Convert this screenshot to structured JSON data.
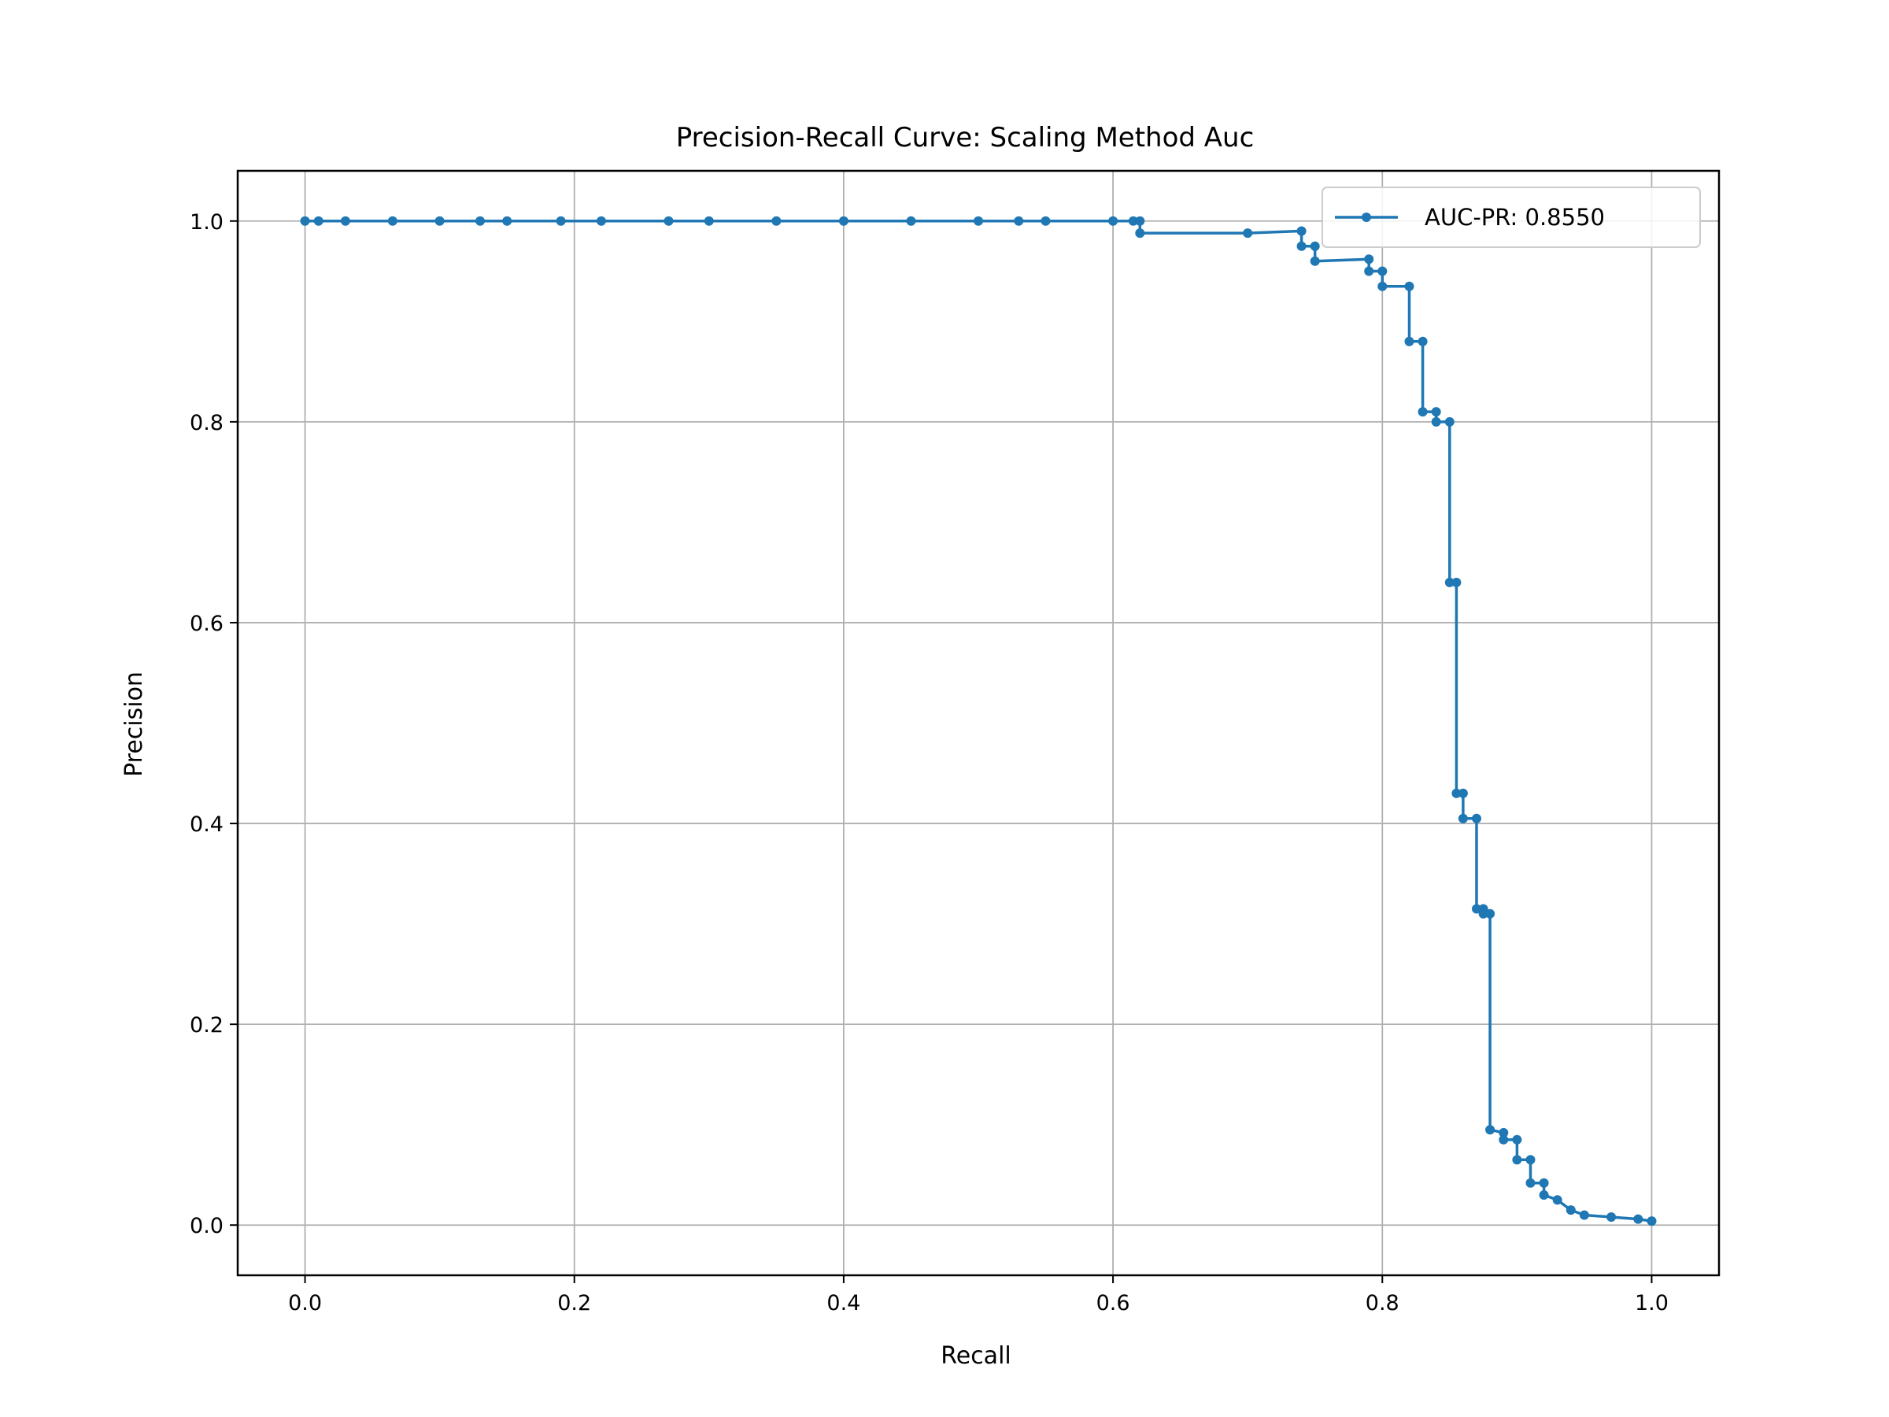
{
  "chart_data": {
    "type": "line",
    "title": "Precision-Recall Curve: Scaling Method Auc",
    "xlabel": "Recall",
    "ylabel": "Precision",
    "xlim": [
      -0.05,
      1.05
    ],
    "ylim": [
      -0.05,
      1.05
    ],
    "xticks": [
      "0.0",
      "0.2",
      "0.4",
      "0.6",
      "0.8",
      "1.0"
    ],
    "yticks": [
      "0.0",
      "0.2",
      "0.4",
      "0.6",
      "0.8",
      "1.0"
    ],
    "grid": true,
    "legend_position": "top-right",
    "color": "#1f77b4",
    "series": [
      {
        "name": "AUC-PR: 0.8550",
        "x": [
          0.0,
          0.01,
          0.03,
          0.065,
          0.1,
          0.13,
          0.15,
          0.19,
          0.22,
          0.27,
          0.3,
          0.35,
          0.4,
          0.45,
          0.5,
          0.53,
          0.55,
          0.6,
          0.615,
          0.62,
          0.62,
          0.7,
          0.74,
          0.74,
          0.75,
          0.75,
          0.79,
          0.79,
          0.8,
          0.8,
          0.82,
          0.82,
          0.83,
          0.83,
          0.84,
          0.84,
          0.85,
          0.85,
          0.855,
          0.855,
          0.86,
          0.86,
          0.87,
          0.87,
          0.875,
          0.875,
          0.88,
          0.88,
          0.89,
          0.89,
          0.9,
          0.9,
          0.91,
          0.91,
          0.92,
          0.92,
          0.93,
          0.94,
          0.95,
          0.97,
          0.99,
          1.0
        ],
        "y": [
          1.0,
          1.0,
          1.0,
          1.0,
          1.0,
          1.0,
          1.0,
          1.0,
          1.0,
          1.0,
          1.0,
          1.0,
          1.0,
          1.0,
          1.0,
          1.0,
          1.0,
          1.0,
          1.0,
          1.0,
          0.988,
          0.988,
          0.99,
          0.975,
          0.975,
          0.96,
          0.962,
          0.95,
          0.95,
          0.935,
          0.935,
          0.88,
          0.88,
          0.81,
          0.81,
          0.8,
          0.8,
          0.64,
          0.64,
          0.43,
          0.43,
          0.405,
          0.405,
          0.315,
          0.315,
          0.31,
          0.31,
          0.095,
          0.092,
          0.085,
          0.085,
          0.065,
          0.065,
          0.042,
          0.042,
          0.03,
          0.025,
          0.015,
          0.01,
          0.008,
          0.006,
          0.004
        ]
      }
    ]
  }
}
